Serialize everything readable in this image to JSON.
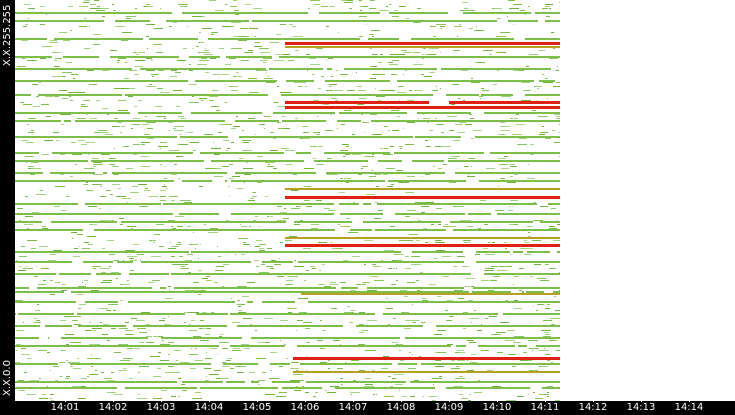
{
  "chart_data": {
    "type": "heatmap",
    "title": "",
    "xlabel": "",
    "ylabel": "",
    "y_axis": {
      "top_label": "X.X.255.255",
      "bottom_label": "X.X.0.0"
    },
    "x_axis": {
      "tick_labels": [
        "14:01",
        "14:02",
        "14:03",
        "14:04",
        "14:05",
        "14:06",
        "14:07",
        "14:08",
        "14:09",
        "14:10",
        "14:11",
        "14:12",
        "14:13",
        "14:14"
      ],
      "xlim": [
        "14:00:30",
        "14:14:30"
      ],
      "data_end": "14:11:20"
    },
    "grid": false,
    "colors": {
      "low": "#7dbd4a",
      "medium": "#b5a020",
      "high": "#e02010",
      "background": "#ffffff",
      "axis_band": "#000000"
    },
    "hot_rows": [
      {
        "row": 0.895,
        "start": "14:05:35",
        "end": "14:11:20",
        "level": "high"
      },
      {
        "row": 0.885,
        "start": "14:05:35",
        "end": "14:11:20",
        "level": "medium"
      },
      {
        "row": 0.747,
        "start": "14:05:35",
        "end": "14:08:35",
        "level": "high"
      },
      {
        "row": 0.747,
        "start": "14:09:00",
        "end": "14:11:20",
        "level": "high"
      },
      {
        "row": 0.735,
        "start": "14:05:35",
        "end": "14:11:20",
        "level": "high"
      },
      {
        "row": 0.53,
        "start": "14:05:35",
        "end": "14:11:20",
        "level": "medium"
      },
      {
        "row": 0.512,
        "start": "14:05:35",
        "end": "14:11:20",
        "level": "high"
      },
      {
        "row": 0.41,
        "start": "14:05:35",
        "end": "14:11:20",
        "level": "medium"
      },
      {
        "row": 0.392,
        "start": "14:05:35",
        "end": "14:11:20",
        "level": "high"
      },
      {
        "row": 0.27,
        "start": "14:05:55",
        "end": "14:11:20",
        "level": "medium"
      },
      {
        "row": 0.11,
        "start": "14:05:45",
        "end": "14:11:20",
        "level": "high"
      },
      {
        "row": 0.075,
        "start": "14:05:45",
        "end": "14:11:20",
        "level": "medium"
      }
    ],
    "steady_rows": [
      0.97,
      0.95,
      0.905,
      0.86,
      0.83,
      0.8,
      0.765,
      0.72,
      0.7,
      0.66,
      0.62,
      0.6,
      0.57,
      0.55,
      0.495,
      0.47,
      0.45,
      0.43,
      0.375,
      0.35,
      0.32,
      0.285,
      0.275,
      0.25,
      0.22,
      0.19,
      0.16,
      0.14,
      0.095,
      0.05,
      0.035
    ]
  }
}
